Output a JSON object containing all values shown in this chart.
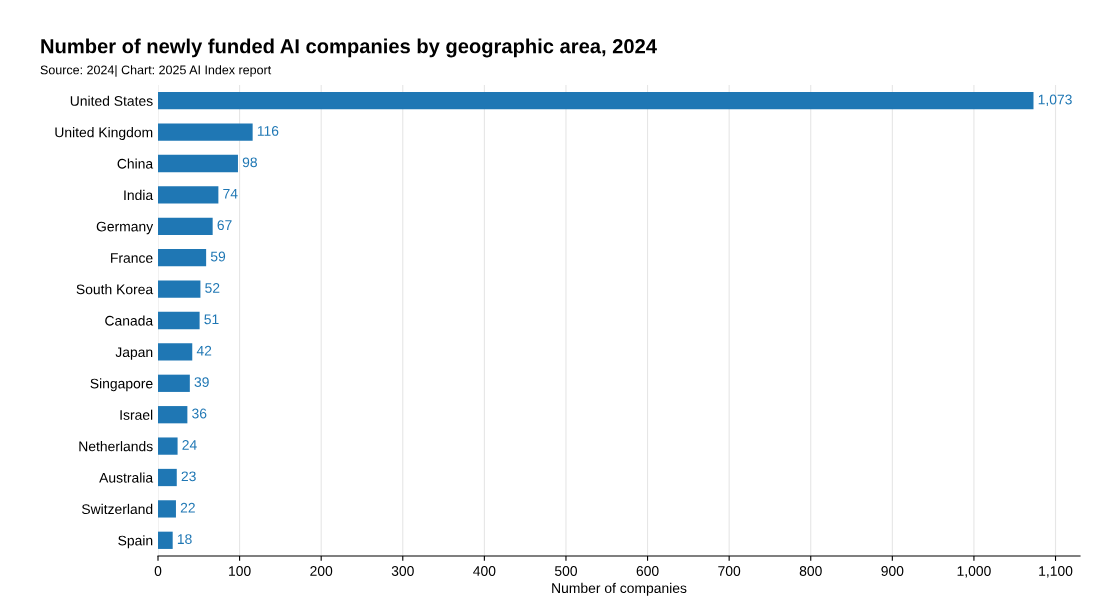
{
  "chart_data": {
    "type": "bar",
    "orientation": "horizontal",
    "title": "Number of newly funded AI companies by geographic area, 2024",
    "subtitle": "Source: 2024| Chart: 2025 AI Index report",
    "xlabel": "Number of companies",
    "categories": [
      "United States",
      "United Kingdom",
      "China",
      "India",
      "Germany",
      "France",
      "South Korea",
      "Canada",
      "Japan",
      "Singapore",
      "Israel",
      "Netherlands",
      "Australia",
      "Switzerland",
      "Spain"
    ],
    "values": [
      1073,
      116,
      98,
      74,
      67,
      59,
      52,
      51,
      42,
      39,
      36,
      24,
      23,
      22,
      18
    ],
    "value_labels": [
      "1,073",
      "116",
      "98",
      "74",
      "67",
      "59",
      "52",
      "51",
      "42",
      "39",
      "36",
      "24",
      "23",
      "22",
      "18"
    ],
    "color": "#1f77b4",
    "xlim": [
      0,
      1130
    ],
    "xticks": [
      0,
      100,
      200,
      300,
      400,
      500,
      600,
      700,
      800,
      900,
      {
        "value": 1000,
        "label": "1,000"
      },
      {
        "value": 1100,
        "label": "1,100"
      }
    ],
    "grid": "x"
  }
}
